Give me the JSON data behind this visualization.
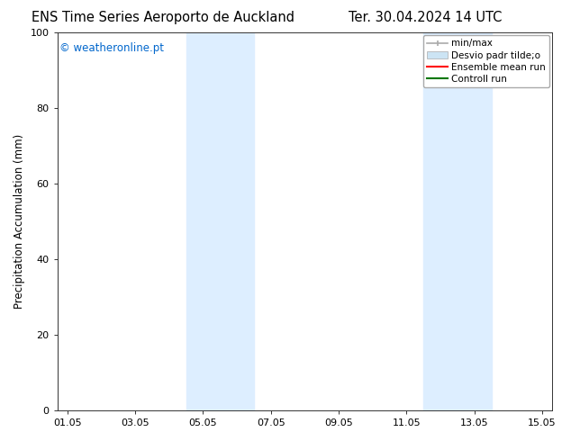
{
  "title_left": "ENS Time Series Aeroporto de Auckland",
  "title_right": "Ter. 30.04.2024 14 UTC",
  "ylabel": "Precipitation Accumulation (mm)",
  "ylim": [
    0,
    100
  ],
  "yticks": [
    0,
    20,
    40,
    60,
    80,
    100
  ],
  "xtick_labels": [
    "01.05",
    "03.05",
    "05.05",
    "07.05",
    "09.05",
    "11.05",
    "13.05",
    "15.05"
  ],
  "xtick_positions": [
    0,
    2,
    4,
    6,
    8,
    10,
    12,
    14
  ],
  "xlim": [
    -0.3,
    14.3
  ],
  "shaded_regions": [
    {
      "xmin": 3.5,
      "xmax": 5.5,
      "color": "#ddeeff"
    },
    {
      "xmin": 10.5,
      "xmax": 12.5,
      "color": "#ddeeff"
    }
  ],
  "bg_color": "#ffffff",
  "plot_bg_color": "#ffffff",
  "legend_labels": [
    "min/max",
    "Desvio padr tilde;o",
    "Ensemble mean run",
    "Controll run"
  ],
  "legend_colors": [
    "#aaaaaa",
    "#cce4f4",
    "#ff0000",
    "#007700"
  ],
  "watermark_text": "© weatheronline.pt",
  "watermark_color": "#0066cc",
  "title_fontsize": 10.5,
  "tick_fontsize": 8,
  "ylabel_fontsize": 8.5,
  "legend_fontsize": 7.5
}
